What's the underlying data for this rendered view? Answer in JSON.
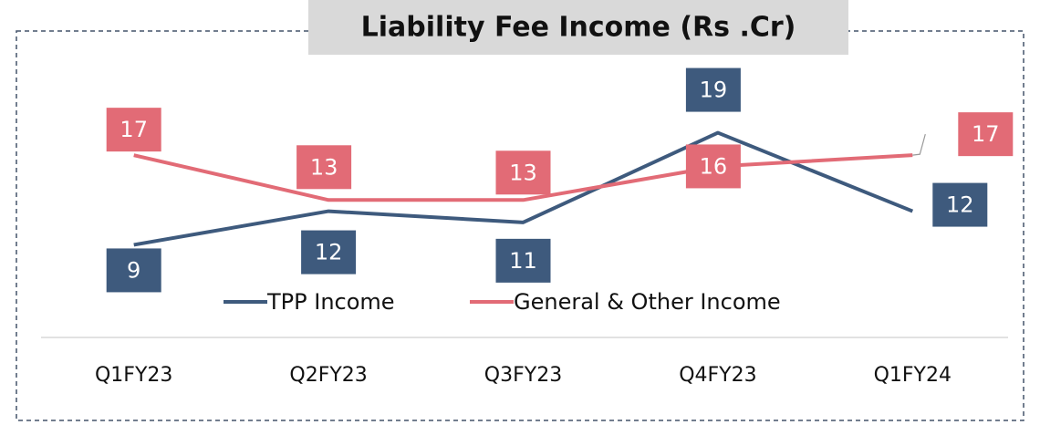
{
  "chart_data": {
    "type": "line",
    "title": "Liability Fee Income (Rs .Cr)",
    "categories": [
      "Q1FY23",
      "Q2FY23",
      "Q3FY23",
      "Q4FY23",
      "Q1FY24"
    ],
    "series": [
      {
        "name": "TPP Income",
        "color": "#3e5a7d",
        "values": [
          9,
          12,
          11,
          19,
          12
        ]
      },
      {
        "name": "General & Other Income",
        "color": "#e26b76",
        "values": [
          17,
          13,
          13,
          16,
          17
        ]
      }
    ],
    "ylim": [
      0,
      28
    ]
  }
}
